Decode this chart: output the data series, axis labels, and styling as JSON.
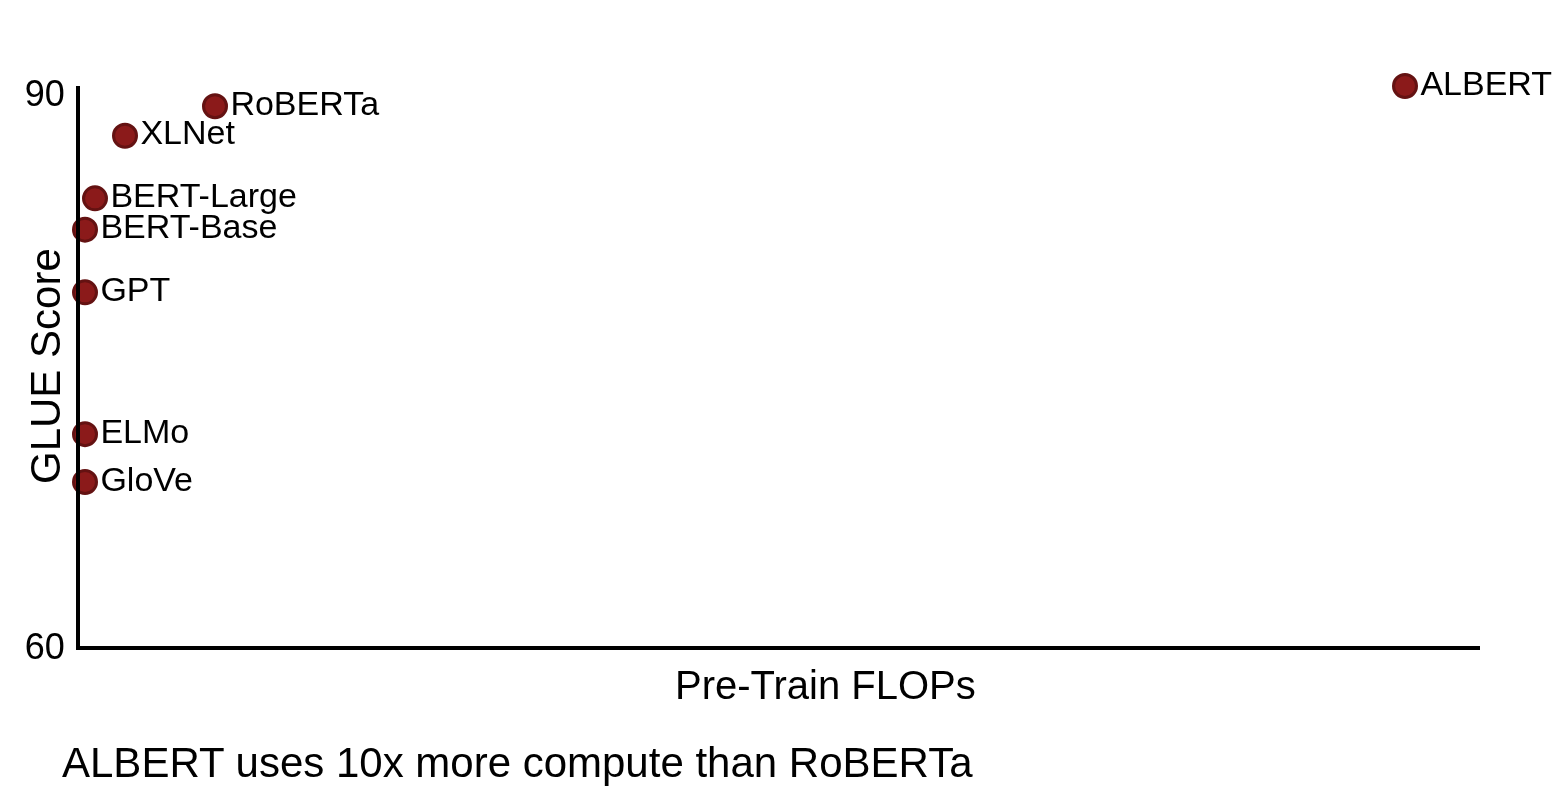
{
  "chart_data": {
    "type": "scatter",
    "xlabel": "Pre-Train FLOPs",
    "ylabel": "GLUE Score",
    "annotations": [
      "ALBERT uses 10x more compute than RoBERTa"
    ],
    "categories": [
      null,
      null,
      null,
      null,
      null,
      null,
      null,
      null,
      null,
      null,
      null,
      null,
      null,
      null,
      null,
      null,
      null,
      null,
      null,
      null,
      null,
      null,
      null,
      null,
      null,
      null,
      null,
      null,
      null,
      null,
      null,
      null,
      null,
      null,
      null,
      null,
      null,
      null,
      null,
      null,
      null,
      null,
      null,
      null,
      null,
      null,
      null,
      null,
      null,
      null,
      null,
      null,
      null,
      null,
      null,
      null,
      null,
      null,
      null,
      null,
      null,
      null,
      null,
      null,
      null,
      null,
      null,
      null,
      null,
      null,
      null,
      null,
      null,
      null,
      null,
      null,
      null,
      null,
      null,
      null,
      null,
      null,
      null,
      null,
      null,
      null,
      null,
      null,
      null,
      null,
      null,
      null,
      null,
      null,
      null,
      null,
      null,
      null,
      null,
      null,
      null,
      null,
      null,
      null,
      null,
      null,
      null,
      null,
      null,
      null,
      null,
      null,
      null,
      null,
      null,
      null,
      null,
      null,
      null,
      null,
      null,
      null,
      null,
      null,
      null,
      null,
      null,
      null,
      null,
      null,
      null,
      null,
      null,
      null,
      null,
      null,
      null,
      null,
      null,
      null
    ],
    "ylim": [
      60,
      90.4
    ],
    "yticks": [
      60,
      90
    ],
    "tick_labels": "y",
    "marker": "circle",
    "series": [
      {
        "name": "ALBERT",
        "color": "#8b1a1a",
        "values": [
          null,
          null,
          null,
          null,
          null,
          null,
          null,
          null,
          null,
          null,
          null,
          null,
          null,
          null,
          null,
          null,
          null,
          null,
          null,
          null,
          null,
          null,
          null,
          null,
          null,
          null,
          null,
          null,
          null,
          null,
          null,
          null,
          null,
          null,
          null,
          null,
          null,
          null,
          null,
          null,
          null,
          null,
          null,
          null,
          null,
          null,
          null,
          null,
          null,
          null,
          null,
          null,
          null,
          null,
          null,
          null,
          null,
          null,
          null,
          null,
          null,
          null,
          null,
          null,
          null,
          null,
          null,
          null,
          null,
          null,
          null,
          null,
          null,
          null,
          null,
          null,
          null,
          null,
          null,
          null,
          null,
          null,
          null,
          null,
          null,
          null,
          null,
          null,
          null,
          null,
          null,
          null,
          null,
          null,
          null,
          null,
          null,
          null,
          null,
          null,
          null,
          null,
          null,
          null,
          null,
          null,
          null,
          null,
          null,
          null,
          null,
          null,
          null,
          null,
          null,
          null,
          null,
          null,
          null,
          null,
          null,
          null,
          null,
          null,
          null,
          null,
          null,
          null,
          null,
          null,
          null,
          null,
          90.4,
          null,
          null,
          null,
          null,
          null,
          null,
          null
        ]
      },
      {
        "name": "RoBERTa",
        "color": "#8b1a1a",
        "values": [
          null,
          null,
          null,
          null,
          null,
          null,
          null,
          null,
          null,
          null,
          null,
          null,
          null,
          89.3,
          null,
          null,
          null,
          null,
          null,
          null,
          null,
          null,
          null,
          null,
          null,
          null,
          null,
          null,
          null,
          null,
          null,
          null,
          null,
          null,
          null,
          null,
          null,
          null,
          null,
          null,
          null,
          null,
          null,
          null,
          null,
          null,
          null,
          null,
          null,
          null,
          null,
          null,
          null,
          null,
          null,
          null,
          null,
          null,
          null,
          null,
          null,
          null,
          null,
          null,
          null,
          null,
          null,
          null,
          null,
          null,
          null,
          null,
          null,
          null,
          null,
          null,
          null,
          null,
          null,
          null,
          null,
          null,
          null,
          null,
          null,
          null,
          null,
          null,
          null,
          null,
          null,
          null,
          null,
          null,
          null,
          null,
          null,
          null,
          null,
          null,
          null,
          null,
          null,
          null,
          null,
          null,
          null,
          null,
          null,
          null,
          null,
          null,
          null,
          null,
          null,
          null,
          null,
          null,
          null,
          null,
          null,
          null,
          null,
          null,
          null,
          null,
          null,
          null,
          null,
          null,
          null,
          null,
          null,
          null,
          null,
          null,
          null,
          null,
          null,
          null
        ]
      },
      {
        "name": "XLNet",
        "color": "#8b1a1a",
        "values": [
          null,
          null,
          null,
          null,
          87.7,
          null,
          null,
          null,
          null,
          null,
          null,
          null,
          null,
          null,
          null,
          null,
          null,
          null,
          null,
          null,
          null,
          null,
          null,
          null,
          null,
          null,
          null,
          null,
          null,
          null,
          null,
          null,
          null,
          null,
          null,
          null,
          null,
          null,
          null,
          null,
          null,
          null,
          null,
          null,
          null,
          null,
          null,
          null,
          null,
          null,
          null,
          null,
          null,
          null,
          null,
          null,
          null,
          null,
          null,
          null,
          null,
          null,
          null,
          null,
          null,
          null,
          null,
          null,
          null,
          null,
          null,
          null,
          null,
          null,
          null,
          null,
          null,
          null,
          null,
          null,
          null,
          null,
          null,
          null,
          null,
          null,
          null,
          null,
          null,
          null,
          null,
          null,
          null,
          null,
          null,
          null,
          null,
          null,
          null,
          null,
          null,
          null,
          null,
          null,
          null,
          null,
          null,
          null,
          null,
          null,
          null,
          null,
          null,
          null,
          null,
          null,
          null,
          null,
          null,
          null,
          null,
          null,
          null,
          null,
          null,
          null,
          null,
          null,
          null,
          null,
          null,
          null,
          null,
          null,
          null,
          null,
          null,
          null,
          null,
          null
        ]
      },
      {
        "name": "BERT-Large",
        "color": "#8b1a1a",
        "values": [
          null,
          84.3,
          null,
          null,
          null,
          null,
          null,
          null,
          null,
          null,
          null,
          null,
          null,
          null,
          null,
          null,
          null,
          null,
          null,
          null,
          null,
          null,
          null,
          null,
          null,
          null,
          null,
          null,
          null,
          null,
          null,
          null,
          null,
          null,
          null,
          null,
          null,
          null,
          null,
          null,
          null,
          null,
          null,
          null,
          null,
          null,
          null,
          null,
          null,
          null,
          null,
          null,
          null,
          null,
          null,
          null,
          null,
          null,
          null,
          null,
          null,
          null,
          null,
          null,
          null,
          null,
          null,
          null,
          null,
          null,
          null,
          null,
          null,
          null,
          null,
          null,
          null,
          null,
          null,
          null,
          null,
          null,
          null,
          null,
          null,
          null,
          null,
          null,
          null,
          null,
          null,
          null,
          null,
          null,
          null,
          null,
          null,
          null,
          null,
          null,
          null,
          null,
          null,
          null,
          null,
          null,
          null,
          null,
          null,
          null,
          null,
          null,
          null,
          null,
          null,
          null,
          null,
          null,
          null,
          null,
          null,
          null,
          null,
          null,
          null,
          null,
          null,
          null,
          null,
          null,
          null,
          null,
          null,
          null,
          null,
          null,
          null,
          null,
          null,
          null
        ]
      },
      {
        "name": "BERT-Base",
        "color": "#8b1a1a",
        "values": [
          82.6,
          null,
          null,
          null,
          null,
          null,
          null,
          null,
          null,
          null,
          null,
          null,
          null,
          null,
          null,
          null,
          null,
          null,
          null,
          null,
          null,
          null,
          null,
          null,
          null,
          null,
          null,
          null,
          null,
          null,
          null,
          null,
          null,
          null,
          null,
          null,
          null,
          null,
          null,
          null,
          null,
          null,
          null,
          null,
          null,
          null,
          null,
          null,
          null,
          null,
          null,
          null,
          null,
          null,
          null,
          null,
          null,
          null,
          null,
          null,
          null,
          null,
          null,
          null,
          null,
          null,
          null,
          null,
          null,
          null,
          null,
          null,
          null,
          null,
          null,
          null,
          null,
          null,
          null,
          null,
          null,
          null,
          null,
          null,
          null,
          null,
          null,
          null,
          null,
          null,
          null,
          null,
          null,
          null,
          null,
          null,
          null,
          null,
          null,
          null,
          null,
          null,
          null,
          null,
          null,
          null,
          null,
          null,
          null,
          null,
          null,
          null,
          null,
          null,
          null,
          null,
          null,
          null,
          null,
          null,
          null,
          null,
          null,
          null,
          null,
          null,
          null,
          null,
          null,
          null,
          null,
          null,
          null,
          null,
          null,
          null,
          null,
          null,
          null,
          null
        ]
      },
      {
        "name": "GPT",
        "color": "#8b1a1a",
        "values": [
          79.2,
          null,
          null,
          null,
          null,
          null,
          null,
          null,
          null,
          null,
          null,
          null,
          null,
          null,
          null,
          null,
          null,
          null,
          null,
          null,
          null,
          null,
          null,
          null,
          null,
          null,
          null,
          null,
          null,
          null,
          null,
          null,
          null,
          null,
          null,
          null,
          null,
          null,
          null,
          null,
          null,
          null,
          null,
          null,
          null,
          null,
          null,
          null,
          null,
          null,
          null,
          null,
          null,
          null,
          null,
          null,
          null,
          null,
          null,
          null,
          null,
          null,
          null,
          null,
          null,
          null,
          null,
          null,
          null,
          null,
          null,
          null,
          null,
          null,
          null,
          null,
          null,
          null,
          null,
          null,
          null,
          null,
          null,
          null,
          null,
          null,
          null,
          null,
          null,
          null,
          null,
          null,
          null,
          null,
          null,
          null,
          null,
          null,
          null,
          null,
          null,
          null,
          null,
          null,
          null,
          null,
          null,
          null,
          null,
          null,
          null,
          null,
          null,
          null,
          null,
          null,
          null,
          null,
          null,
          null,
          null,
          null,
          null,
          null,
          null,
          null,
          null,
          null,
          null,
          null,
          null,
          null,
          null,
          null,
          null,
          null,
          null,
          null,
          null,
          null
        ]
      },
      {
        "name": "ELMo",
        "color": "#8b1a1a",
        "values": [
          71.5,
          null,
          null,
          null,
          null,
          null,
          null,
          null,
          null,
          null,
          null,
          null,
          null,
          null,
          null,
          null,
          null,
          null,
          null,
          null,
          null,
          null,
          null,
          null,
          null,
          null,
          null,
          null,
          null,
          null,
          null,
          null,
          null,
          null,
          null,
          null,
          null,
          null,
          null,
          null,
          null,
          null,
          null,
          null,
          null,
          null,
          null,
          null,
          null,
          null,
          null,
          null,
          null,
          null,
          null,
          null,
          null,
          null,
          null,
          null,
          null,
          null,
          null,
          null,
          null,
          null,
          null,
          null,
          null,
          null,
          null,
          null,
          null,
          null,
          null,
          null,
          null,
          null,
          null,
          null,
          null,
          null,
          null,
          null,
          null,
          null,
          null,
          null,
          null,
          null,
          null,
          null,
          null,
          null,
          null,
          null,
          null,
          null,
          null,
          null,
          null,
          null,
          null,
          null,
          null,
          null,
          null,
          null,
          null,
          null,
          null,
          null,
          null,
          null,
          null,
          null,
          null,
          null,
          null,
          null,
          null,
          null,
          null,
          null,
          null,
          null,
          null,
          null,
          null,
          null,
          null,
          null,
          null,
          null,
          null,
          null,
          null,
          null,
          null,
          null
        ]
      },
      {
        "name": "GloVe",
        "color": "#8b1a1a",
        "values": [
          68.9,
          null,
          null,
          null,
          null,
          null,
          null,
          null,
          null,
          null,
          null,
          null,
          null,
          null,
          null,
          null,
          null,
          null,
          null,
          null,
          null,
          null,
          null,
          null,
          null,
          null,
          null,
          null,
          null,
          null,
          null,
          null,
          null,
          null,
          null,
          null,
          null,
          null,
          null,
          null,
          null,
          null,
          null,
          null,
          null,
          null,
          null,
          null,
          null,
          null,
          null,
          null,
          null,
          null,
          null,
          null,
          null,
          null,
          null,
          null,
          null,
          null,
          null,
          null,
          null,
          null,
          null,
          null,
          null,
          null,
          null,
          null,
          null,
          null,
          null,
          null,
          null,
          null,
          null,
          null,
          null,
          null,
          null,
          null,
          null,
          null,
          null,
          null,
          null,
          null,
          null,
          null,
          null,
          null,
          null,
          null,
          null,
          null,
          null,
          null,
          null,
          null,
          null,
          null,
          null,
          null,
          null,
          null,
          null,
          null,
          null,
          null,
          null,
          null,
          null,
          null,
          null,
          null,
          null,
          null,
          null,
          null,
          null,
          null,
          null,
          null,
          null,
          null,
          null,
          null,
          null,
          null,
          null,
          null,
          null,
          null,
          null,
          null,
          null,
          null
        ]
      }
    ]
  }
}
